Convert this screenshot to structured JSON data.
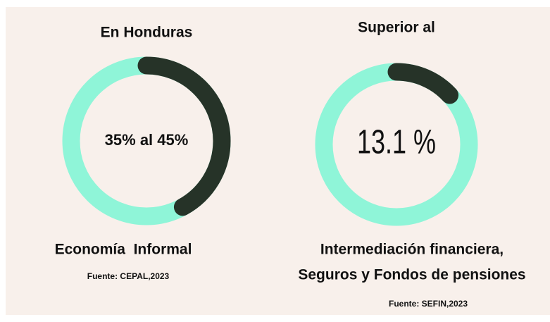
{
  "chart_data": [
    {
      "type": "donut",
      "title": "En Honduras",
      "center_label": "35% al 45%",
      "value": 42,
      "vlim": [
        0,
        100
      ],
      "color": "#263328",
      "track_color": "#8ff5d8",
      "caption": [
        "Economía  Informal"
      ],
      "source": "Fuente: CEPAL,2023"
    },
    {
      "type": "donut",
      "title": "Superior al",
      "center_label": "13.1 %",
      "value": 13.1,
      "vlim": [
        0,
        100
      ],
      "color": "#263328",
      "track_color": "#8ff5d8",
      "caption": [
        "Intermediación financiera,",
        "Seguros y Fondos de pensiones"
      ],
      "source": "Fuente: SEFIN,2023"
    }
  ]
}
